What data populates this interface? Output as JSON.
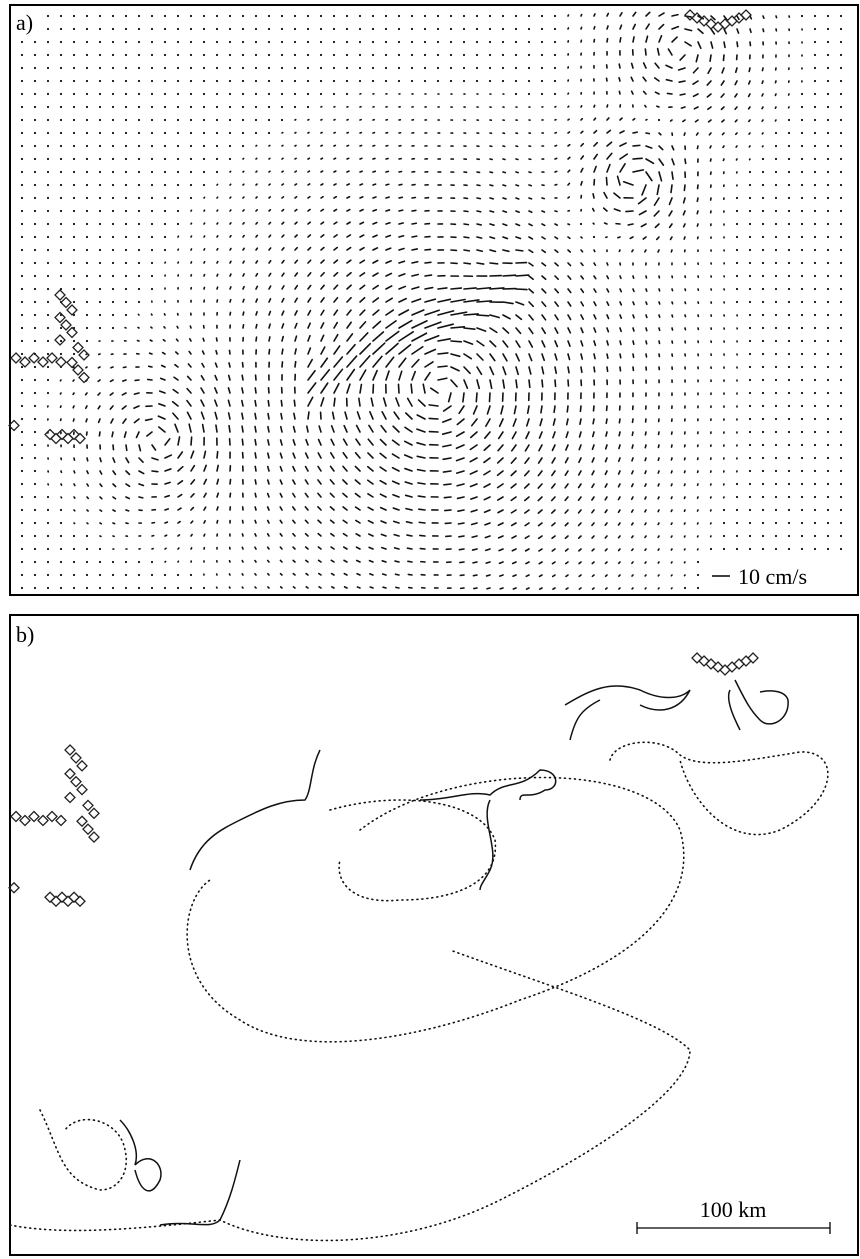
{
  "panels": [
    {
      "label": "a)",
      "scale_label": "10 cm/s"
    },
    {
      "label": "b)",
      "scale_label": "100 km"
    }
  ]
}
